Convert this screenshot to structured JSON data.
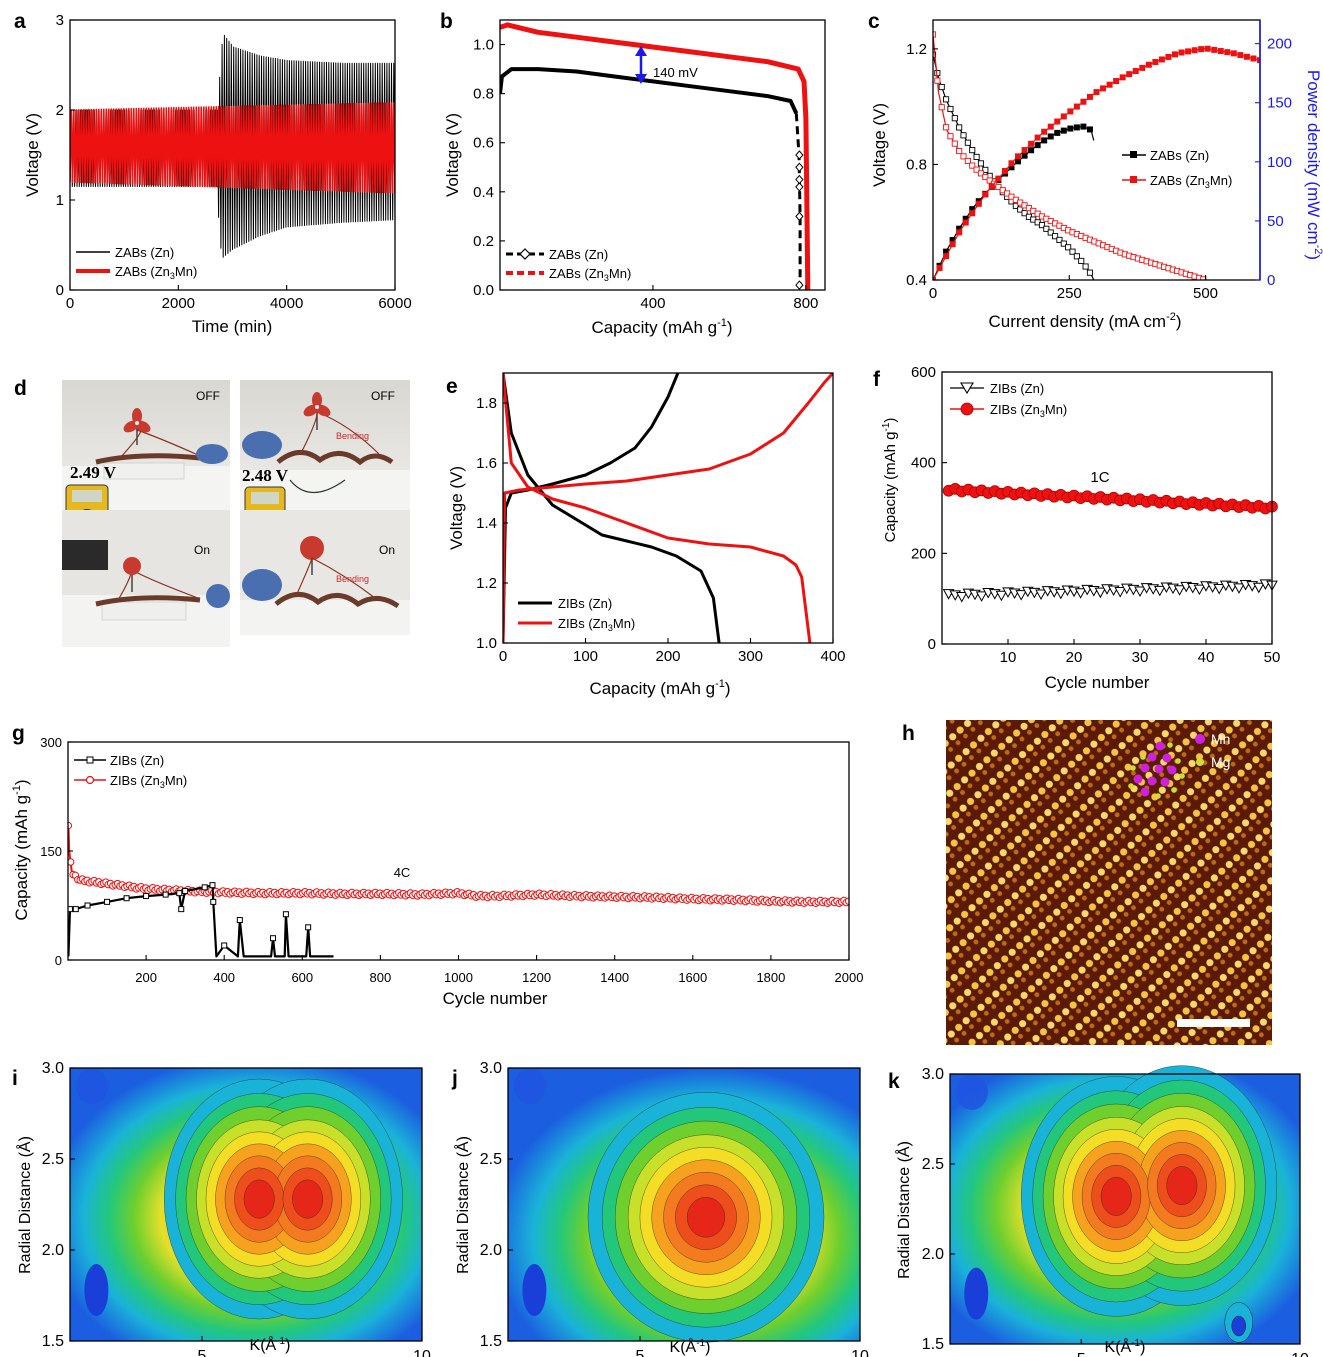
{
  "colors": {
    "zn": "#000000",
    "zn3mn": "#ee1111",
    "power_axis": "#1a1aee",
    "arrow": "#1a1aee"
  },
  "chart_data": [
    {
      "panel": "a",
      "type": "line",
      "xlabel": "Time (min)",
      "ylabel": "Voltage (V)",
      "xlim": [
        0,
        6000
      ],
      "ylim": [
        0,
        3
      ],
      "xticks": [
        "0",
        "2000",
        "4000",
        "6000"
      ],
      "yticks": [
        "0",
        "1",
        "2",
        "3"
      ],
      "legend": "bottom-left",
      "series": [
        {
          "name": "ZABs (Zn)",
          "color": "#000000",
          "envelope_time": [
            0,
            2700,
            2800,
            3000,
            3500,
            4000,
            5000,
            6000
          ],
          "envelope_max": [
            2.0,
            2.0,
            2.85,
            2.7,
            2.6,
            2.55,
            2.52,
            2.52
          ],
          "envelope_min": [
            1.15,
            1.15,
            0.35,
            0.45,
            0.6,
            0.7,
            0.75,
            0.78
          ]
        },
        {
          "name": "ZABs (Zn3Mn)",
          "color": "#ee1111",
          "envelope_time": [
            0,
            6000
          ],
          "envelope_max": [
            2.0,
            2.08
          ],
          "envelope_min": [
            1.2,
            1.08
          ]
        }
      ]
    },
    {
      "panel": "b",
      "type": "line",
      "xlabel": "Capacity (mAh g-1)",
      "ylabel": "Voltage (V)",
      "xlim": [
        0,
        850
      ],
      "ylim": [
        0,
        1.1
      ],
      "xticks": [
        "400",
        "800"
      ],
      "yticks": [
        "0.0",
        "0.2",
        "0.4",
        "0.6",
        "0.8",
        "1.0"
      ],
      "annotation": "140 mV",
      "legend": "bottom-left",
      "series": [
        {
          "name": "ZABs (Zn)",
          "color": "#000000",
          "x": [
            0,
            5,
            30,
            100,
            200,
            300,
            400,
            500,
            600,
            700,
            760,
            775,
            782,
            785,
            785
          ],
          "y": [
            0.8,
            0.87,
            0.9,
            0.9,
            0.89,
            0.87,
            0.85,
            0.83,
            0.81,
            0.79,
            0.77,
            0.72,
            0.55,
            0.3,
            0.02
          ]
        },
        {
          "name": "ZABs (Zn3Mn)",
          "color": "#ee1111",
          "x": [
            0,
            20,
            100,
            200,
            300,
            400,
            500,
            600,
            700,
            780,
            795,
            800,
            803,
            805
          ],
          "y": [
            1.07,
            1.08,
            1.05,
            1.03,
            1.01,
            0.99,
            0.97,
            0.95,
            0.93,
            0.9,
            0.85,
            0.7,
            0.3,
            0.0
          ]
        }
      ]
    },
    {
      "panel": "c",
      "type": "line",
      "xlabel": "Current density (mA cm-2)",
      "ylabel": "Voltage (V)",
      "ylabel_right": "Power density (mW cm-2)",
      "xlim": [
        0,
        600
      ],
      "ylim": [
        0.4,
        1.3
      ],
      "ylim_right": [
        0,
        220
      ],
      "xticks": [
        "0",
        "250",
        "500"
      ],
      "yticks": [
        "0.4",
        "0.8",
        "1.2"
      ],
      "yticks_right": [
        "0",
        "50",
        "100",
        "150",
        "200"
      ],
      "legend": "center-right",
      "series": [
        {
          "name": "ZABs (Zn)",
          "color": "#000000",
          "axis": "left",
          "x": [
            0,
            10,
            25,
            50,
            75,
            100,
            125,
            150,
            175,
            200,
            225,
            250,
            275,
            290,
            295
          ],
          "y": [
            1.18,
            1.1,
            1.02,
            0.92,
            0.84,
            0.77,
            0.71,
            0.66,
            0.62,
            0.59,
            0.55,
            0.51,
            0.46,
            0.42,
            0.4
          ]
        },
        {
          "name": "ZABs (Zn)",
          "color": "#000000",
          "axis": "right",
          "x": [
            0,
            25,
            50,
            75,
            100,
            125,
            150,
            175,
            200,
            225,
            250,
            275,
            290,
            295
          ],
          "y": [
            0,
            25,
            45,
            62,
            75,
            87,
            98,
            108,
            117,
            124,
            128,
            130,
            127,
            118
          ]
        },
        {
          "name": "ZABs (Zn3Mn)",
          "color": "#ee1111",
          "axis": "left",
          "x": [
            0,
            10,
            25,
            50,
            75,
            100,
            150,
            200,
            250,
            300,
            350,
            400,
            450,
            500
          ],
          "y": [
            1.25,
            1.05,
            0.92,
            0.84,
            0.79,
            0.75,
            0.68,
            0.62,
            0.57,
            0.53,
            0.49,
            0.46,
            0.43,
            0.4
          ]
        },
        {
          "name": "ZABs (Zn3Mn)",
          "color": "#ee1111",
          "axis": "right",
          "x": [
            0,
            50,
            100,
            150,
            200,
            250,
            300,
            350,
            400,
            450,
            500,
            550,
            600
          ],
          "y": [
            0,
            42,
            75,
            102,
            124,
            142,
            159,
            172,
            183,
            192,
            196,
            192,
            186
          ]
        }
      ]
    },
    {
      "panel": "e",
      "type": "line",
      "xlabel": "Capacity (mAh g-1)",
      "ylabel": "Voltage (V)",
      "xlim": [
        0,
        400
      ],
      "ylim": [
        1.0,
        1.9
      ],
      "xticks": [
        "0",
        "100",
        "200",
        "300",
        "400"
      ],
      "yticks": [
        "1.0",
        "1.2",
        "1.4",
        "1.6",
        "1.8"
      ],
      "legend": "bottom-left",
      "series": [
        {
          "name": "ZIBs (Zn)",
          "color": "#000000",
          "x": [
            0,
            3,
            10,
            30,
            60,
            100,
            130,
            160,
            180,
            200,
            212,
            220,
            225
          ],
          "y": [
            1.0,
            1.45,
            1.5,
            1.51,
            1.53,
            1.56,
            1.6,
            1.65,
            1.72,
            1.82,
            1.9,
            1.95,
            2.0
          ]
        },
        {
          "name": "ZIBs (Zn)",
          "color": "#000000",
          "x": [
            0,
            10,
            30,
            60,
            90,
            120,
            150,
            180,
            210,
            240,
            255,
            262
          ],
          "y": [
            1.9,
            1.7,
            1.56,
            1.46,
            1.41,
            1.36,
            1.34,
            1.32,
            1.29,
            1.24,
            1.15,
            1.0
          ]
        },
        {
          "name": "ZIBs (Zn3Mn)",
          "color": "#ee1111",
          "x": [
            0,
            2,
            20,
            60,
            100,
            150,
            200,
            250,
            300,
            340,
            370,
            390,
            400
          ],
          "y": [
            1.0,
            1.5,
            1.51,
            1.52,
            1.53,
            1.54,
            1.56,
            1.58,
            1.63,
            1.7,
            1.8,
            1.87,
            1.9
          ]
        },
        {
          "name": "ZIBs (Zn3Mn)",
          "color": "#ee1111",
          "x": [
            0,
            10,
            30,
            60,
            100,
            150,
            200,
            250,
            300,
            340,
            355,
            362,
            372
          ],
          "y": [
            1.9,
            1.6,
            1.52,
            1.48,
            1.45,
            1.4,
            1.35,
            1.33,
            1.32,
            1.29,
            1.26,
            1.22,
            1.0
          ]
        }
      ]
    },
    {
      "panel": "f",
      "type": "scatter",
      "xlabel": "Cycle number",
      "ylabel": "Capacity (mAh g-1)",
      "xlim": [
        0,
        50
      ],
      "ylim": [
        0,
        600
      ],
      "xticks": [
        "10",
        "20",
        "30",
        "40",
        "50"
      ],
      "yticks": [
        "0",
        "200",
        "400",
        "600"
      ],
      "annotation": "1C",
      "legend": "top-left",
      "series": [
        {
          "name": "ZIBs (Zn)",
          "color": "#000000",
          "marker": "open-triangle-down",
          "x_start": 1,
          "x_end": 50,
          "y_start": 108,
          "y_end": 130
        },
        {
          "name": "ZIBs (Zn3Mn)",
          "color": "#ee1111",
          "marker": "filled-circle",
          "x_start": 1,
          "x_end": 50,
          "y_start": 340,
          "y_end": 300
        }
      ]
    },
    {
      "panel": "g",
      "type": "line",
      "xlabel": "Cycle number",
      "ylabel": "Capacity (mAh g-1)",
      "xlim": [
        0,
        2000
      ],
      "ylim": [
        0,
        300
      ],
      "xticks": [
        "200",
        "400",
        "600",
        "800",
        "1000",
        "1200",
        "1400",
        "1600",
        "1800",
        "2000"
      ],
      "yticks": [
        "0",
        "150",
        "300"
      ],
      "annotation": "4C",
      "legend": "top-left",
      "series": [
        {
          "name": "ZIBs (Zn)",
          "color": "#000000",
          "x": [
            1,
            5,
            20,
            50,
            100,
            150,
            200,
            250,
            285,
            290,
            300,
            350,
            370,
            372,
            380,
            400,
            435,
            440,
            450,
            520,
            525,
            530,
            555,
            558,
            565,
            610,
            615,
            620,
            680
          ],
          "y": [
            5,
            70,
            70,
            75,
            80,
            85,
            88,
            90,
            92,
            70,
            95,
            100,
            103,
            80,
            5,
            20,
            5,
            55,
            5,
            5,
            30,
            5,
            5,
            63,
            5,
            5,
            45,
            5,
            5
          ]
        },
        {
          "name": "ZIBs (Zn3Mn)",
          "color": "#ee1111",
          "x": [
            1,
            3,
            10,
            30,
            100,
            200,
            300,
            400,
            500,
            600,
            700,
            800,
            900,
            1000,
            1050,
            1100,
            1200,
            1300,
            1400,
            1500,
            1600,
            1700,
            1800,
            1900,
            2000
          ],
          "y": [
            185,
            150,
            120,
            110,
            105,
            98,
            95,
            93,
            92,
            92,
            91,
            91,
            90,
            92,
            88,
            88,
            90,
            88,
            87,
            86,
            84,
            83,
            81,
            80,
            80
          ]
        }
      ]
    },
    {
      "panel": "i",
      "type": "heatmap",
      "xlabel": "K(Å-1)",
      "ylabel": "Radial Distance (Å)",
      "xlim": [
        2,
        10
      ],
      "ylim": [
        1.5,
        3.0
      ],
      "xticks": [
        "5",
        "10"
      ],
      "yticks": [
        "1.5",
        "2.0",
        "2.5",
        "3.0"
      ],
      "peaks": [
        {
          "k": 6.3,
          "r": 2.28
        },
        {
          "k": 7.4,
          "r": 2.28
        }
      ]
    },
    {
      "panel": "j",
      "type": "heatmap",
      "xlabel": "K(Å-1)",
      "ylabel": "Radial Distance (Å)",
      "xlim": [
        2,
        10
      ],
      "ylim": [
        1.5,
        3.0
      ],
      "xticks": [
        "5",
        "10"
      ],
      "yticks": [
        "1.5",
        "2.0",
        "2.5",
        "3.0"
      ],
      "peaks": [
        {
          "k": 6.5,
          "r": 2.18
        }
      ]
    },
    {
      "panel": "k",
      "type": "heatmap",
      "xlabel": "K(Å-1)",
      "ylabel": "Radial Distance (Å)",
      "xlim": [
        2,
        10
      ],
      "ylim": [
        1.5,
        3.0
      ],
      "xticks": [
        "5",
        "10"
      ],
      "yticks": [
        "1.5",
        "2.0",
        "2.5",
        "3.0"
      ],
      "peaks": [
        {
          "k": 5.8,
          "r": 2.32
        },
        {
          "k": 7.3,
          "r": 2.38
        }
      ]
    }
  ],
  "panel_letters": {
    "a": "a",
    "b": "b",
    "c": "c",
    "d": "d",
    "e": "e",
    "f": "f",
    "g": "g",
    "h": "h",
    "i": "i",
    "j": "j",
    "k": "k"
  },
  "photo_d": {
    "off_label": "OFF",
    "on_label": "On",
    "bending_label": "Bending",
    "voltage_left": "2.49 V",
    "voltage_right": "2.48 V"
  },
  "stem_h": {
    "legend_mn": "Mn",
    "legend_mg": "Mg",
    "mn_color": "#cc22dd",
    "mg_color": "#ccdd33"
  },
  "texts": {
    "a_leg1": "ZABs (Zn)",
    "a_leg2": "ZABs (Zn",
    "a_leg2_sub": "3",
    "a_leg2_end": "Mn)",
    "b_leg1": "ZABs (Zn)",
    "b_leg2": "ZABs (Zn",
    "b_leg2_sub": "3",
    "b_leg2_end": "Mn)",
    "c_leg1": "ZABs (Zn)",
    "c_leg2": "ZABs (Zn",
    "c_leg2_sub": "3",
    "c_leg2_end": "Mn)",
    "e_leg1": "ZIBs (Zn)",
    "e_leg2": "ZIBs (Zn",
    "e_leg2_sub": "3",
    "e_leg2_end": "Mn)",
    "f_leg1": "ZIBs (Zn)",
    "f_leg2": "ZIBs (Zn",
    "f_leg2_sub": "3",
    "f_leg2_end": "Mn)",
    "g_leg1": "ZIBs (Zn)",
    "g_leg2": "ZIBs (Zn",
    "g_leg2_sub": "3",
    "g_leg2_end": "Mn)",
    "a_xlabel": "Time (min)",
    "a_ylabel": "Voltage (V)",
    "b_xlabel": "Capacity (mAh g",
    "b_xlabel_sup": "-1",
    "b_xlabel_end": ")",
    "b_ylabel": "Voltage (V)",
    "b_annot": "140 mV",
    "c_xlabel": "Current density (mA cm",
    "c_xlabel_sup": "-2",
    "c_xlabel_end": ")",
    "c_ylabel": "Voltage (V)",
    "c_ylabel_right": "Power density (mW cm",
    "c_ylabel_right_sup": "-2",
    "c_ylabel_right_end": ")",
    "e_xlabel": "Capacity (mAh g",
    "e_xlabel_sup": "-1",
    "e_xlabel_end": ")",
    "e_ylabel": "Voltage (V)",
    "f_xlabel": "Cycle number",
    "f_ylabel": "Capacity (mAh g",
    "f_ylabel_sup": "-1",
    "f_ylabel_end": ")",
    "f_annot": "1C",
    "g_xlabel": "Cycle number",
    "g_ylabel": "Capacity (mAh g",
    "g_ylabel_sup": "-1",
    "g_ylabel_end": ")",
    "g_annot": "4C",
    "ijk_xlabel": "K(Å",
    "ijk_xlabel_sup": "-1",
    "ijk_xlabel_end": ")",
    "ijk_ylabel": "Radial Distance (Å)"
  }
}
